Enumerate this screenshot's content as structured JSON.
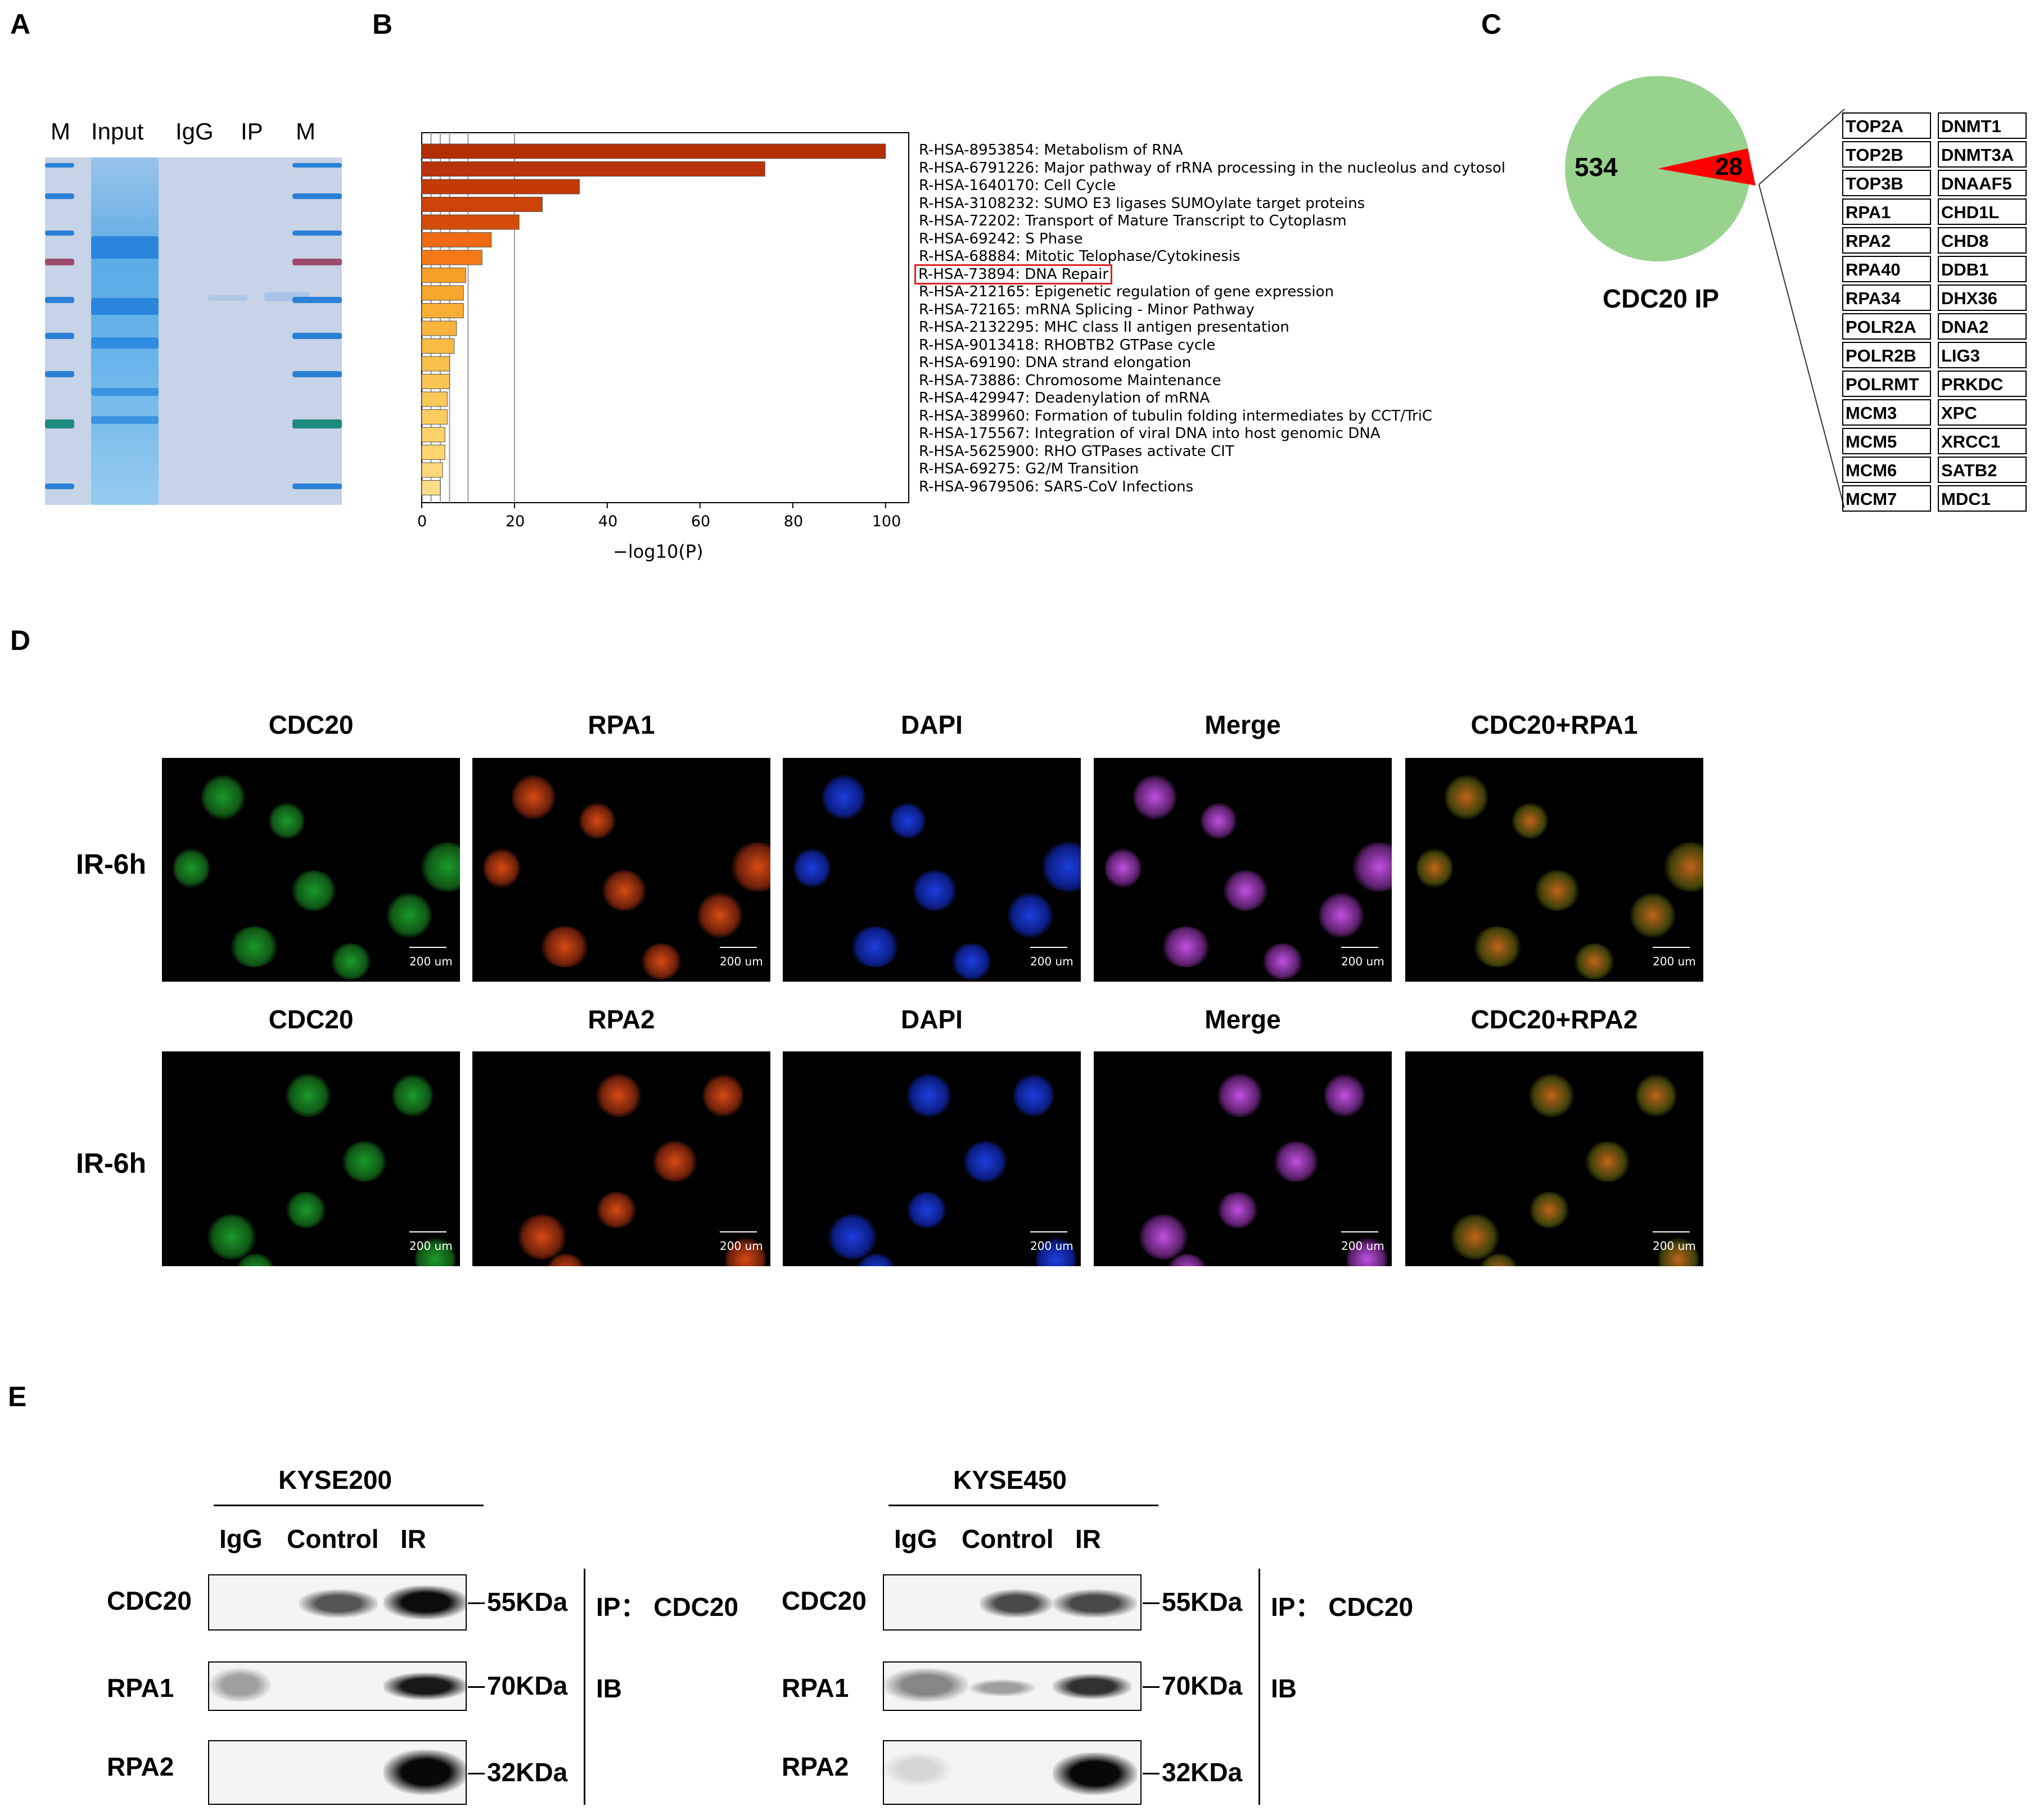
{
  "panels": {
    "A": "A",
    "B": "B",
    "C": "C",
    "D": "D",
    "E": "E"
  },
  "panelA": {
    "lanes": [
      "M",
      "Input",
      "IgG",
      "IP",
      "M"
    ]
  },
  "chart_data": {
    "type": "bar",
    "orientation": "horizontal",
    "categories": [
      "R-HSA-8953854: Metabolism of RNA",
      "R-HSA-6791226: Major pathway of rRNA processing in the nucleolus and cytosol",
      "R-HSA-1640170: Cell Cycle",
      "R-HSA-3108232: SUMO E3 ligases SUMOylate target proteins",
      "R-HSA-72202: Transport of Mature Transcript to Cytoplasm",
      "R-HSA-69242: S Phase",
      "R-HSA-68884: Mitotic Telophase/Cytokinesis",
      "R-HSA-73894: DNA Repair",
      "R-HSA-212165: Epigenetic regulation of gene expression",
      "R-HSA-72165: mRNA Splicing - Minor Pathway",
      "R-HSA-2132295: MHC class II antigen presentation",
      "R-HSA-9013418: RHOBTB2 GTPase cycle",
      "R-HSA-69190: DNA strand elongation",
      "R-HSA-73886: Chromosome Maintenance",
      "R-HSA-429947: Deadenylation of mRNA",
      "R-HSA-389960: Formation of tubulin folding intermediates by CCT/TriC",
      "R-HSA-175567: Integration of viral DNA into host genomic DNA",
      "R-HSA-5625900: RHO GTPases activate CIT",
      "R-HSA-69275: G2/M Transition",
      "R-HSA-9679506: SARS-CoV Infections"
    ],
    "values": [
      100,
      74,
      34,
      26,
      21,
      15,
      13,
      9.5,
      9,
      9,
      7.5,
      7,
      6,
      6,
      5.5,
      5.5,
      5,
      5,
      4.5,
      4
    ],
    "colors": [
      "#b22d00",
      "#b8330a",
      "#c43a06",
      "#cc4407",
      "#d44c0a",
      "#ee6a12",
      "#f47a18",
      "#f6a027",
      "#f7a62e",
      "#f8ad35",
      "#f8b43c",
      "#f9ba43",
      "#f9bf4b",
      "#fac552",
      "#fac959",
      "#fbcd61",
      "#fbd16a",
      "#fcd572",
      "#fcd87b",
      "#fddd87"
    ],
    "highlight_index": 7,
    "xlabel": "−log10(P)",
    "xticks": [
      0,
      20,
      40,
      60,
      80,
      100
    ],
    "xlim": [
      0,
      105
    ],
    "vlines": [
      2,
      4,
      6,
      10,
      20
    ]
  },
  "panelC": {
    "pie_values": [
      534,
      28
    ],
    "pie_labels": [
      "534",
      "28"
    ],
    "pie_colors": [
      "#98d38e",
      "#ff0000"
    ],
    "title": "CDC20 IP",
    "genes_left": [
      "TOP2A",
      "TOP2B",
      "TOP3B",
      "RPA1",
      "RPA2",
      "RPA40",
      "RPA34",
      "POLR2A",
      "POLR2B",
      "POLRMT",
      "MCM3",
      "MCM5",
      "MCM6",
      "MCM7"
    ],
    "genes_right": [
      "DNMT1",
      "DNMT3A",
      "DNAAF5",
      "CHD1L",
      "CHD8",
      "DDB1",
      "DHX36",
      "DNA2",
      "LIG3",
      "PRKDC",
      "XPC",
      "XRCC1",
      "SATB2",
      "MDC1"
    ]
  },
  "panelD": {
    "row1_titles": [
      "CDC20",
      "RPA1",
      "DAPI",
      "Merge",
      "CDC20+RPA1"
    ],
    "row2_titles": [
      "CDC20",
      "RPA2",
      "DAPI",
      "Merge",
      "CDC20+RPA2"
    ],
    "row_label_1": "IR-6h",
    "row_label_2": "IR-6h",
    "scale": "200 um"
  },
  "panelE": {
    "left": {
      "cell_line": "KYSE200",
      "lanes": [
        "IgG",
        "Control",
        "IR"
      ],
      "rows": [
        "CDC20",
        "RPA1",
        "RPA2"
      ],
      "kda": [
        "55KDa",
        "70KDa",
        "32KDa"
      ],
      "ip_label": "IP： CDC20",
      "ib_label": "IB"
    },
    "right": {
      "cell_line": "KYSE450",
      "lanes": [
        "IgG",
        "Control",
        "IR"
      ],
      "rows": [
        "CDC20",
        "RPA1",
        "RPA2"
      ],
      "kda": [
        "55KDa",
        "70KDa",
        "32KDa"
      ],
      "ip_label": "IP： CDC20",
      "ib_label": "IB"
    }
  }
}
